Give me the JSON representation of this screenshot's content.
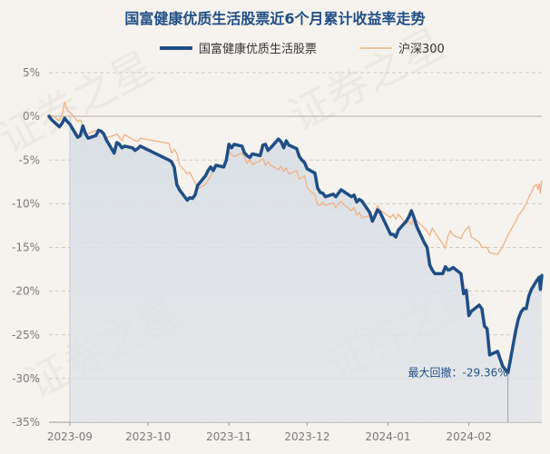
{
  "chart_data": {
    "type": "line",
    "title": "国富健康优质生活股票近6个月累计收益率走势",
    "legend_position": "top-center",
    "y_unit": "%",
    "ylim": [
      -35,
      5
    ],
    "yticks": [
      5,
      0,
      -5,
      -10,
      -15,
      -20,
      -25,
      -30,
      -35
    ],
    "yticklabels": [
      "5%",
      "0%",
      "-5%",
      "-10%",
      "-15%",
      "-20%",
      "-25%",
      "-30%",
      "-35%"
    ],
    "xticks": [
      "2023-09-01",
      "2023-10-01",
      "2023-11-01",
      "2023-12-01",
      "2024-01-01",
      "2024-02-01"
    ],
    "xticklabels": [
      "2023-09",
      "2023-10",
      "2023-11",
      "2023-12",
      "2024-01",
      "2024-02"
    ],
    "xlim": [
      "2023-08-24",
      "2024-02-29"
    ],
    "grid": "horizontal dashed",
    "series": [
      {
        "name": "国富健康优质生活股票",
        "color": "#1f4e86",
        "line_width": "thick",
        "area_fill_from": "2023-09-01",
        "data": [
          [
            "2023-08-24",
            0.0
          ],
          [
            "2023-08-25",
            -0.4
          ],
          [
            "2023-08-28",
            -1.2
          ],
          [
            "2023-08-29",
            -0.8
          ],
          [
            "2023-08-30",
            -0.2
          ],
          [
            "2023-08-31",
            -0.6
          ],
          [
            "2023-09-01",
            -0.9
          ],
          [
            "2023-09-04",
            -2.4
          ],
          [
            "2023-09-05",
            -2.2
          ],
          [
            "2023-09-06",
            -1.1
          ],
          [
            "2023-09-07",
            -2.0
          ],
          [
            "2023-09-08",
            -2.5
          ],
          [
            "2023-09-11",
            -2.2
          ],
          [
            "2023-09-12",
            -1.6
          ],
          [
            "2023-09-13",
            -1.7
          ],
          [
            "2023-09-14",
            -2.0
          ],
          [
            "2023-09-15",
            -2.7
          ],
          [
            "2023-09-18",
            -4.2
          ],
          [
            "2023-09-19",
            -3.0
          ],
          [
            "2023-09-20",
            -3.2
          ],
          [
            "2023-09-21",
            -3.6
          ],
          [
            "2023-09-22",
            -3.4
          ],
          [
            "2023-09-25",
            -3.6
          ],
          [
            "2023-09-26",
            -3.9
          ],
          [
            "2023-09-27",
            -3.7
          ],
          [
            "2023-09-28",
            -3.4
          ],
          [
            "2023-10-09",
            -5.0
          ],
          [
            "2023-10-10",
            -5.2
          ],
          [
            "2023-10-11",
            -5.8
          ],
          [
            "2023-10-12",
            -7.8
          ],
          [
            "2023-10-13",
            -8.4
          ],
          [
            "2023-10-16",
            -9.6
          ],
          [
            "2023-10-17",
            -9.3
          ],
          [
            "2023-10-18",
            -9.4
          ],
          [
            "2023-10-19",
            -9.0
          ],
          [
            "2023-10-20",
            -7.9
          ],
          [
            "2023-10-23",
            -6.8
          ],
          [
            "2023-10-24",
            -6.2
          ],
          [
            "2023-10-25",
            -5.8
          ],
          [
            "2023-10-26",
            -6.2
          ],
          [
            "2023-10-27",
            -5.6
          ],
          [
            "2023-10-30",
            -5.8
          ],
          [
            "2023-10-31",
            -5.0
          ],
          [
            "2023-11-01",
            -3.2
          ],
          [
            "2023-11-02",
            -3.6
          ],
          [
            "2023-11-03",
            -3.2
          ],
          [
            "2023-11-06",
            -3.4
          ],
          [
            "2023-11-07",
            -4.2
          ],
          [
            "2023-11-08",
            -4.5
          ],
          [
            "2023-11-09",
            -4.7
          ],
          [
            "2023-11-10",
            -4.3
          ],
          [
            "2023-11-13",
            -4.5
          ],
          [
            "2023-11-14",
            -3.3
          ],
          [
            "2023-11-15",
            -3.2
          ],
          [
            "2023-11-16",
            -3.9
          ],
          [
            "2023-11-17",
            -3.6
          ],
          [
            "2023-11-20",
            -2.6
          ],
          [
            "2023-11-21",
            -2.9
          ],
          [
            "2023-11-22",
            -3.6
          ],
          [
            "2023-11-23",
            -2.8
          ],
          [
            "2023-11-24",
            -3.3
          ],
          [
            "2023-11-27",
            -3.7
          ],
          [
            "2023-11-28",
            -4.6
          ],
          [
            "2023-11-29",
            -5.0
          ],
          [
            "2023-11-30",
            -5.3
          ],
          [
            "2023-12-01",
            -6.0
          ],
          [
            "2023-12-04",
            -6.5
          ],
          [
            "2023-12-05",
            -8.2
          ],
          [
            "2023-12-06",
            -8.7
          ],
          [
            "2023-12-07",
            -8.8
          ],
          [
            "2023-12-08",
            -9.2
          ],
          [
            "2023-12-11",
            -8.9
          ],
          [
            "2023-12-12",
            -9.2
          ],
          [
            "2023-12-13",
            -8.8
          ],
          [
            "2023-12-14",
            -8.4
          ],
          [
            "2023-12-15",
            -8.6
          ],
          [
            "2023-12-18",
            -9.2
          ],
          [
            "2023-12-19",
            -9.0
          ],
          [
            "2023-12-20",
            -9.8
          ],
          [
            "2023-12-21",
            -9.5
          ],
          [
            "2023-12-22",
            -9.7
          ],
          [
            "2023-12-25",
            -11.0
          ],
          [
            "2023-12-26",
            -12.0
          ],
          [
            "2023-12-27",
            -11.4
          ],
          [
            "2023-12-28",
            -10.7
          ],
          [
            "2023-12-29",
            -11.0
          ],
          [
            "2024-01-02",
            -13.5
          ],
          [
            "2024-01-03",
            -13.5
          ],
          [
            "2024-01-04",
            -13.8
          ],
          [
            "2024-01-05",
            -13.0
          ],
          [
            "2024-01-08",
            -12.0
          ],
          [
            "2024-01-09",
            -11.5
          ],
          [
            "2024-01-10",
            -10.8
          ],
          [
            "2024-01-11",
            -11.6
          ],
          [
            "2024-01-12",
            -12.6
          ],
          [
            "2024-01-15",
            -14.5
          ],
          [
            "2024-01-16",
            -15.0
          ],
          [
            "2024-01-17",
            -17.0
          ],
          [
            "2024-01-18",
            -17.6
          ],
          [
            "2024-01-19",
            -18.0
          ],
          [
            "2024-01-22",
            -18.0
          ],
          [
            "2024-01-23",
            -17.2
          ],
          [
            "2024-01-24",
            -17.6
          ],
          [
            "2024-01-25",
            -17.5
          ],
          [
            "2024-01-26",
            -17.3
          ],
          [
            "2024-01-29",
            -18.0
          ],
          [
            "2024-01-30",
            -20.3
          ],
          [
            "2024-01-31",
            -19.9
          ],
          [
            "2024-02-01",
            -22.8
          ],
          [
            "2024-02-02",
            -22.3
          ],
          [
            "2024-02-05",
            -21.6
          ],
          [
            "2024-02-06",
            -22.0
          ],
          [
            "2024-02-07",
            -24.0
          ],
          [
            "2024-02-08",
            -24.3
          ],
          [
            "2024-02-09",
            -27.3
          ],
          [
            "2024-02-12",
            -26.9
          ],
          [
            "2024-02-14",
            -28.6
          ],
          [
            "2024-02-16",
            -29.36
          ],
          [
            "2024-02-19",
            -24.5
          ],
          [
            "2024-02-20",
            -23.2
          ],
          [
            "2024-02-21",
            -22.4
          ],
          [
            "2024-02-22",
            -22.0
          ],
          [
            "2024-02-23",
            -22.0
          ],
          [
            "2024-02-24",
            -20.6
          ],
          [
            "2024-02-25",
            -19.8
          ],
          [
            "2024-02-26",
            -19.3
          ],
          [
            "2024-02-27",
            -18.8
          ],
          [
            "2024-02-28",
            -18.6
          ],
          [
            "2024-02-28",
            -18.4
          ],
          [
            "2024-02-28",
            -19.8
          ],
          [
            "2024-02-29",
            -18.2
          ]
        ]
      },
      {
        "name": "沪深300",
        "color": "#f1b283",
        "line_width": "thin",
        "data": [
          [
            "2023-08-24",
            0.0
          ],
          [
            "2023-08-25",
            0.1
          ],
          [
            "2023-08-28",
            -0.5
          ],
          [
            "2023-08-29",
            0.2
          ],
          [
            "2023-08-30",
            1.6
          ],
          [
            "2023-08-31",
            0.7
          ],
          [
            "2023-09-01",
            0.5
          ],
          [
            "2023-09-04",
            -0.6
          ],
          [
            "2023-09-05",
            -0.4
          ],
          [
            "2023-09-06",
            -1.0
          ],
          [
            "2023-09-07",
            -1.8
          ],
          [
            "2023-09-08",
            -2.0
          ],
          [
            "2023-09-11",
            -1.6
          ],
          [
            "2023-09-12",
            -1.8
          ],
          [
            "2023-09-13",
            -1.8
          ],
          [
            "2023-09-14",
            -2.0
          ],
          [
            "2023-09-15",
            -2.4
          ],
          [
            "2023-09-18",
            -2.2
          ],
          [
            "2023-09-19",
            -2.0
          ],
          [
            "2023-09-20",
            -2.4
          ],
          [
            "2023-09-21",
            -2.8
          ],
          [
            "2023-09-22",
            -2.1
          ],
          [
            "2023-09-25",
            -2.6
          ],
          [
            "2023-09-26",
            -2.8
          ],
          [
            "2023-09-27",
            -2.9
          ],
          [
            "2023-09-28",
            -2.5
          ],
          [
            "2023-10-09",
            -3.1
          ],
          [
            "2023-10-10",
            -4.2
          ],
          [
            "2023-10-11",
            -3.8
          ],
          [
            "2023-10-12",
            -4.2
          ],
          [
            "2023-10-13",
            -5.5
          ],
          [
            "2023-10-16",
            -6.6
          ],
          [
            "2023-10-17",
            -6.4
          ],
          [
            "2023-10-18",
            -7.0
          ],
          [
            "2023-10-19",
            -7.6
          ],
          [
            "2023-10-20",
            -8.3
          ],
          [
            "2023-10-23",
            -7.8
          ],
          [
            "2023-10-24",
            -7.3
          ],
          [
            "2023-10-25",
            -6.8
          ],
          [
            "2023-10-26",
            -6.2
          ],
          [
            "2023-10-27",
            -5.8
          ],
          [
            "2023-10-30",
            -5.6
          ],
          [
            "2023-10-31",
            -5.2
          ],
          [
            "2023-11-01",
            -4.0
          ],
          [
            "2023-11-02",
            -4.4
          ],
          [
            "2023-11-03",
            -4.6
          ],
          [
            "2023-11-06",
            -4.2
          ],
          [
            "2023-11-07",
            -4.6
          ],
          [
            "2023-11-08",
            -5.4
          ],
          [
            "2023-11-09",
            -4.9
          ],
          [
            "2023-11-10",
            -5.5
          ],
          [
            "2023-11-13",
            -5.1
          ],
          [
            "2023-11-14",
            -4.8
          ],
          [
            "2023-11-15",
            -5.6
          ],
          [
            "2023-11-16",
            -5.2
          ],
          [
            "2023-11-17",
            -5.6
          ],
          [
            "2023-11-20",
            -6.1
          ],
          [
            "2023-11-21",
            -5.7
          ],
          [
            "2023-11-22",
            -6.3
          ],
          [
            "2023-11-23",
            -5.9
          ],
          [
            "2023-11-24",
            -6.6
          ],
          [
            "2023-11-27",
            -6.2
          ],
          [
            "2023-11-28",
            -7.2
          ],
          [
            "2023-11-29",
            -7.0
          ],
          [
            "2023-11-30",
            -6.8
          ],
          [
            "2023-12-01",
            -8.2
          ],
          [
            "2023-12-04",
            -9.0
          ],
          [
            "2023-12-05",
            -10.1
          ],
          [
            "2023-12-06",
            -10.2
          ],
          [
            "2023-12-07",
            -9.8
          ],
          [
            "2023-12-08",
            -10.2
          ],
          [
            "2023-12-11",
            -9.9
          ],
          [
            "2023-12-12",
            -10.5
          ],
          [
            "2023-12-13",
            -10.0
          ],
          [
            "2023-12-14",
            -9.7
          ],
          [
            "2023-12-15",
            -10.1
          ],
          [
            "2023-12-18",
            -10.8
          ],
          [
            "2023-12-19",
            -10.4
          ],
          [
            "2023-12-20",
            -11.3
          ],
          [
            "2023-12-21",
            -11.0
          ],
          [
            "2023-12-22",
            -11.6
          ],
          [
            "2023-12-25",
            -11.4
          ],
          [
            "2023-12-26",
            -11.8
          ],
          [
            "2023-12-27",
            -11.0
          ],
          [
            "2023-12-28",
            -10.2
          ],
          [
            "2023-12-29",
            -10.7
          ],
          [
            "2024-01-02",
            -11.6
          ],
          [
            "2024-01-03",
            -11.2
          ],
          [
            "2024-01-04",
            -11.8
          ],
          [
            "2024-01-05",
            -11.2
          ],
          [
            "2024-01-08",
            -12.3
          ],
          [
            "2024-01-09",
            -12.0
          ],
          [
            "2024-01-10",
            -12.4
          ],
          [
            "2024-01-11",
            -11.6
          ],
          [
            "2024-01-12",
            -11.9
          ],
          [
            "2024-01-15",
            -12.8
          ],
          [
            "2024-01-16",
            -13.2
          ],
          [
            "2024-01-17",
            -13.6
          ],
          [
            "2024-01-18",
            -12.8
          ],
          [
            "2024-01-19",
            -13.3
          ],
          [
            "2024-01-22",
            -14.6
          ],
          [
            "2024-01-23",
            -15.1
          ],
          [
            "2024-01-24",
            -13.7
          ],
          [
            "2024-01-25",
            -13.1
          ],
          [
            "2024-01-26",
            -13.6
          ],
          [
            "2024-01-29",
            -14.0
          ],
          [
            "2024-01-30",
            -13.3
          ],
          [
            "2024-01-31",
            -12.9
          ],
          [
            "2024-02-01",
            -12.6
          ],
          [
            "2024-02-02",
            -13.8
          ],
          [
            "2024-02-05",
            -14.4
          ],
          [
            "2024-02-06",
            -15.0
          ],
          [
            "2024-02-07",
            -15.0
          ],
          [
            "2024-02-08",
            -15.0
          ],
          [
            "2024-02-09",
            -15.6
          ],
          [
            "2024-02-12",
            -15.8
          ],
          [
            "2024-02-14",
            -14.9
          ],
          [
            "2024-02-16",
            -13.6
          ],
          [
            "2024-02-19",
            -12.0
          ],
          [
            "2024-02-20",
            -11.3
          ],
          [
            "2024-02-21",
            -11.0
          ],
          [
            "2024-02-22",
            -10.5
          ],
          [
            "2024-02-23",
            -10.0
          ],
          [
            "2024-02-24",
            -9.3
          ],
          [
            "2024-02-25",
            -8.7
          ],
          [
            "2024-02-26",
            -8.0
          ],
          [
            "2024-02-27",
            -7.8
          ],
          [
            "2024-02-28",
            -8.4
          ],
          [
            "2024-02-28",
            -7.7
          ],
          [
            "2024-02-28",
            -8.8
          ],
          [
            "2024-02-29",
            -7.3
          ]
        ]
      }
    ],
    "annotations": [
      {
        "text": "最大回撤：-29.36%",
        "x": "2024-02-16",
        "y": -29.36,
        "color": "#1f4e86"
      }
    ]
  },
  "watermark": "证券之星"
}
